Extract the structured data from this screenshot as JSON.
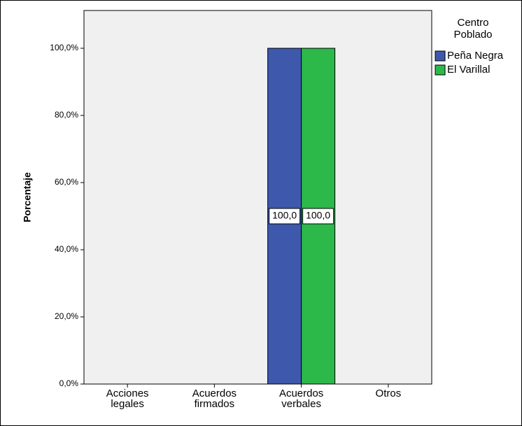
{
  "chart_data": {
    "type": "bar",
    "y_label": "Porcentaje",
    "legend_title": "Centro Poblado",
    "legend": "right",
    "categories": [
      "Acciones legales",
      "Acuerdos firmados",
      "Acuerdos verbales",
      "Otros"
    ],
    "series": [
      {
        "name": "Peña Negra",
        "color": "#3e58ac",
        "values": [
          0,
          0,
          100,
          0
        ],
        "value_labels": [
          null,
          null,
          "100,0",
          null
        ]
      },
      {
        "name": "El Varillal",
        "color": "#2db84a",
        "values": [
          0,
          0,
          100,
          0
        ],
        "value_labels": [
          null,
          null,
          "100,0",
          null
        ]
      }
    ],
    "ylim": [
      0,
      111.25
    ],
    "yticks": [
      {
        "value": 0,
        "label": "0,0%"
      },
      {
        "value": 20,
        "label": "20,0%"
      },
      {
        "value": 40,
        "label": "40,0%"
      },
      {
        "value": 60,
        "label": "60,0%"
      },
      {
        "value": 80,
        "label": "80,0%"
      },
      {
        "value": 100,
        "label": "100,0%"
      }
    ]
  }
}
